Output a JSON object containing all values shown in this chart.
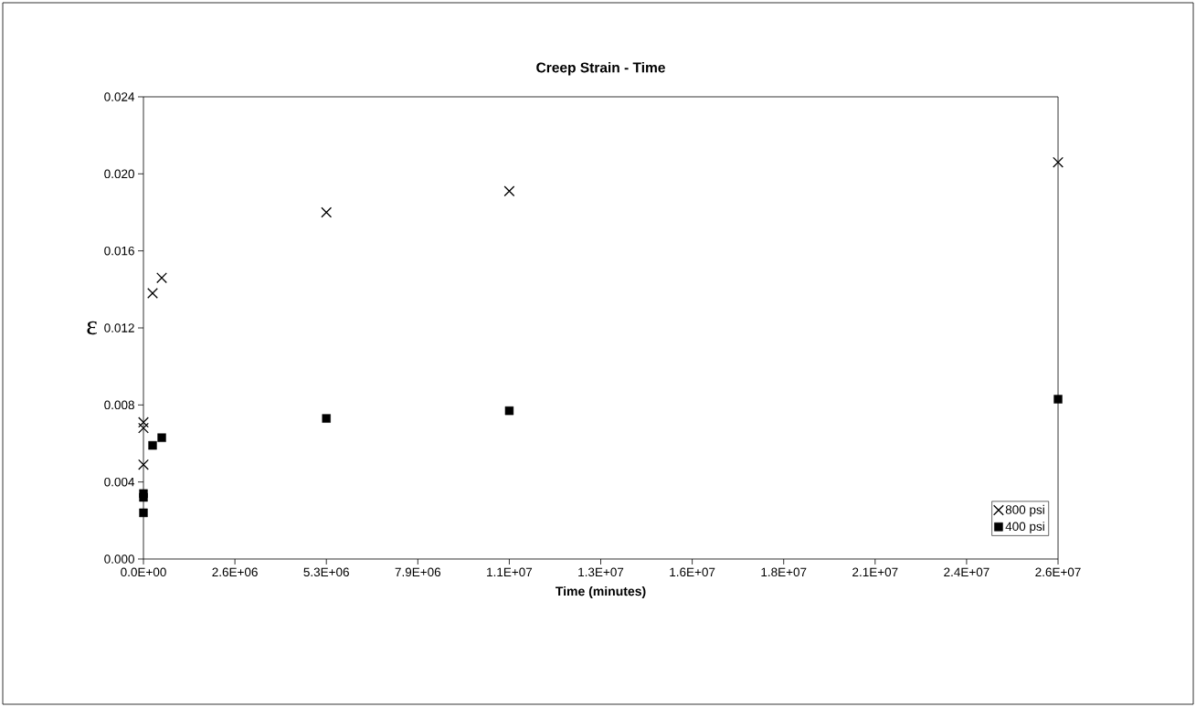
{
  "chart_data": {
    "type": "scatter",
    "title": "Creep Strain - Time",
    "xlabel": "Time   (minutes)",
    "ylabel": "ε",
    "xlim": [
      0,
      26280000
    ],
    "ylim": [
      0,
      0.024
    ],
    "xticks": [
      {
        "value": 0,
        "label": "0.0E+00"
      },
      {
        "value": 2628000,
        "label": "2.6E+06"
      },
      {
        "value": 5256000,
        "label": "5.3E+06"
      },
      {
        "value": 7884000,
        "label": "7.9E+06"
      },
      {
        "value": 10512000,
        "label": "1.1E+07"
      },
      {
        "value": 13140000,
        "label": "1.3E+07"
      },
      {
        "value": 15768000,
        "label": "1.6E+07"
      },
      {
        "value": 18396000,
        "label": "1.8E+07"
      },
      {
        "value": 21024000,
        "label": "2.1E+07"
      },
      {
        "value": 23652000,
        "label": "2.4E+07"
      },
      {
        "value": 26280000,
        "label": "2.6E+07"
      }
    ],
    "yticks": [
      {
        "value": 0,
        "label": "0.000"
      },
      {
        "value": 0.004,
        "label": "0.004"
      },
      {
        "value": 0.008,
        "label": "0.008"
      },
      {
        "value": 0.012,
        "label": "0.012"
      },
      {
        "value": 0.016,
        "label": "0.016"
      },
      {
        "value": 0.02,
        "label": "0.020"
      },
      {
        "value": 0.024,
        "label": "0.024"
      }
    ],
    "grid": false,
    "legend": "bottom right",
    "series": [
      {
        "name": "800 psi",
        "color": "#000000",
        "marker": "cross",
        "x": [
          0,
          0,
          0,
          262800,
          525600,
          5256000,
          10512000,
          26280000
        ],
        "values": [
          0.0049,
          0.0068,
          0.0071,
          0.0138,
          0.0146,
          0.018,
          0.0191,
          0.0206
        ]
      },
      {
        "name": "400 psi",
        "color": "#000000",
        "marker": "square",
        "x": [
          0,
          0,
          0,
          262800,
          525600,
          5256000,
          10512000,
          26280000
        ],
        "values": [
          0.0024,
          0.0032,
          0.0034,
          0.0059,
          0.0063,
          0.0073,
          0.0077,
          0.0083
        ]
      }
    ]
  }
}
